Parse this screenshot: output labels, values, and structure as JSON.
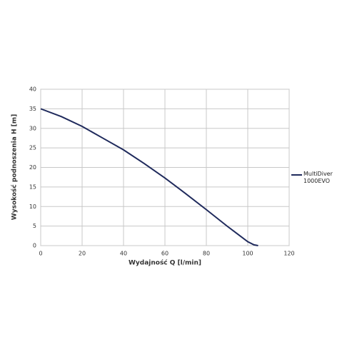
{
  "chart_data": {
    "type": "line",
    "x_label": "Wydajność Q [l/min]",
    "y_label": "Wysokość podnoszenia H [m]",
    "x": [
      0,
      10,
      20,
      30,
      40,
      50,
      60,
      70,
      80,
      90,
      95,
      100,
      103,
      105
    ],
    "series": [
      {
        "name": "MultiDiver 1000EVO",
        "color": "#1f2a5c",
        "values": [
          35,
          33,
          30.5,
          27.5,
          24.5,
          21,
          17.3,
          13.3,
          9.2,
          5,
          3,
          1,
          0.2,
          0
        ]
      }
    ],
    "xlim": [
      0,
      120
    ],
    "xticks": [
      0,
      20,
      40,
      60,
      80,
      100,
      120
    ],
    "ylim": [
      0,
      40
    ],
    "yticks": [
      0,
      5,
      10,
      15,
      20,
      25,
      30,
      35,
      40
    ],
    "grid": true,
    "legend": "right"
  }
}
